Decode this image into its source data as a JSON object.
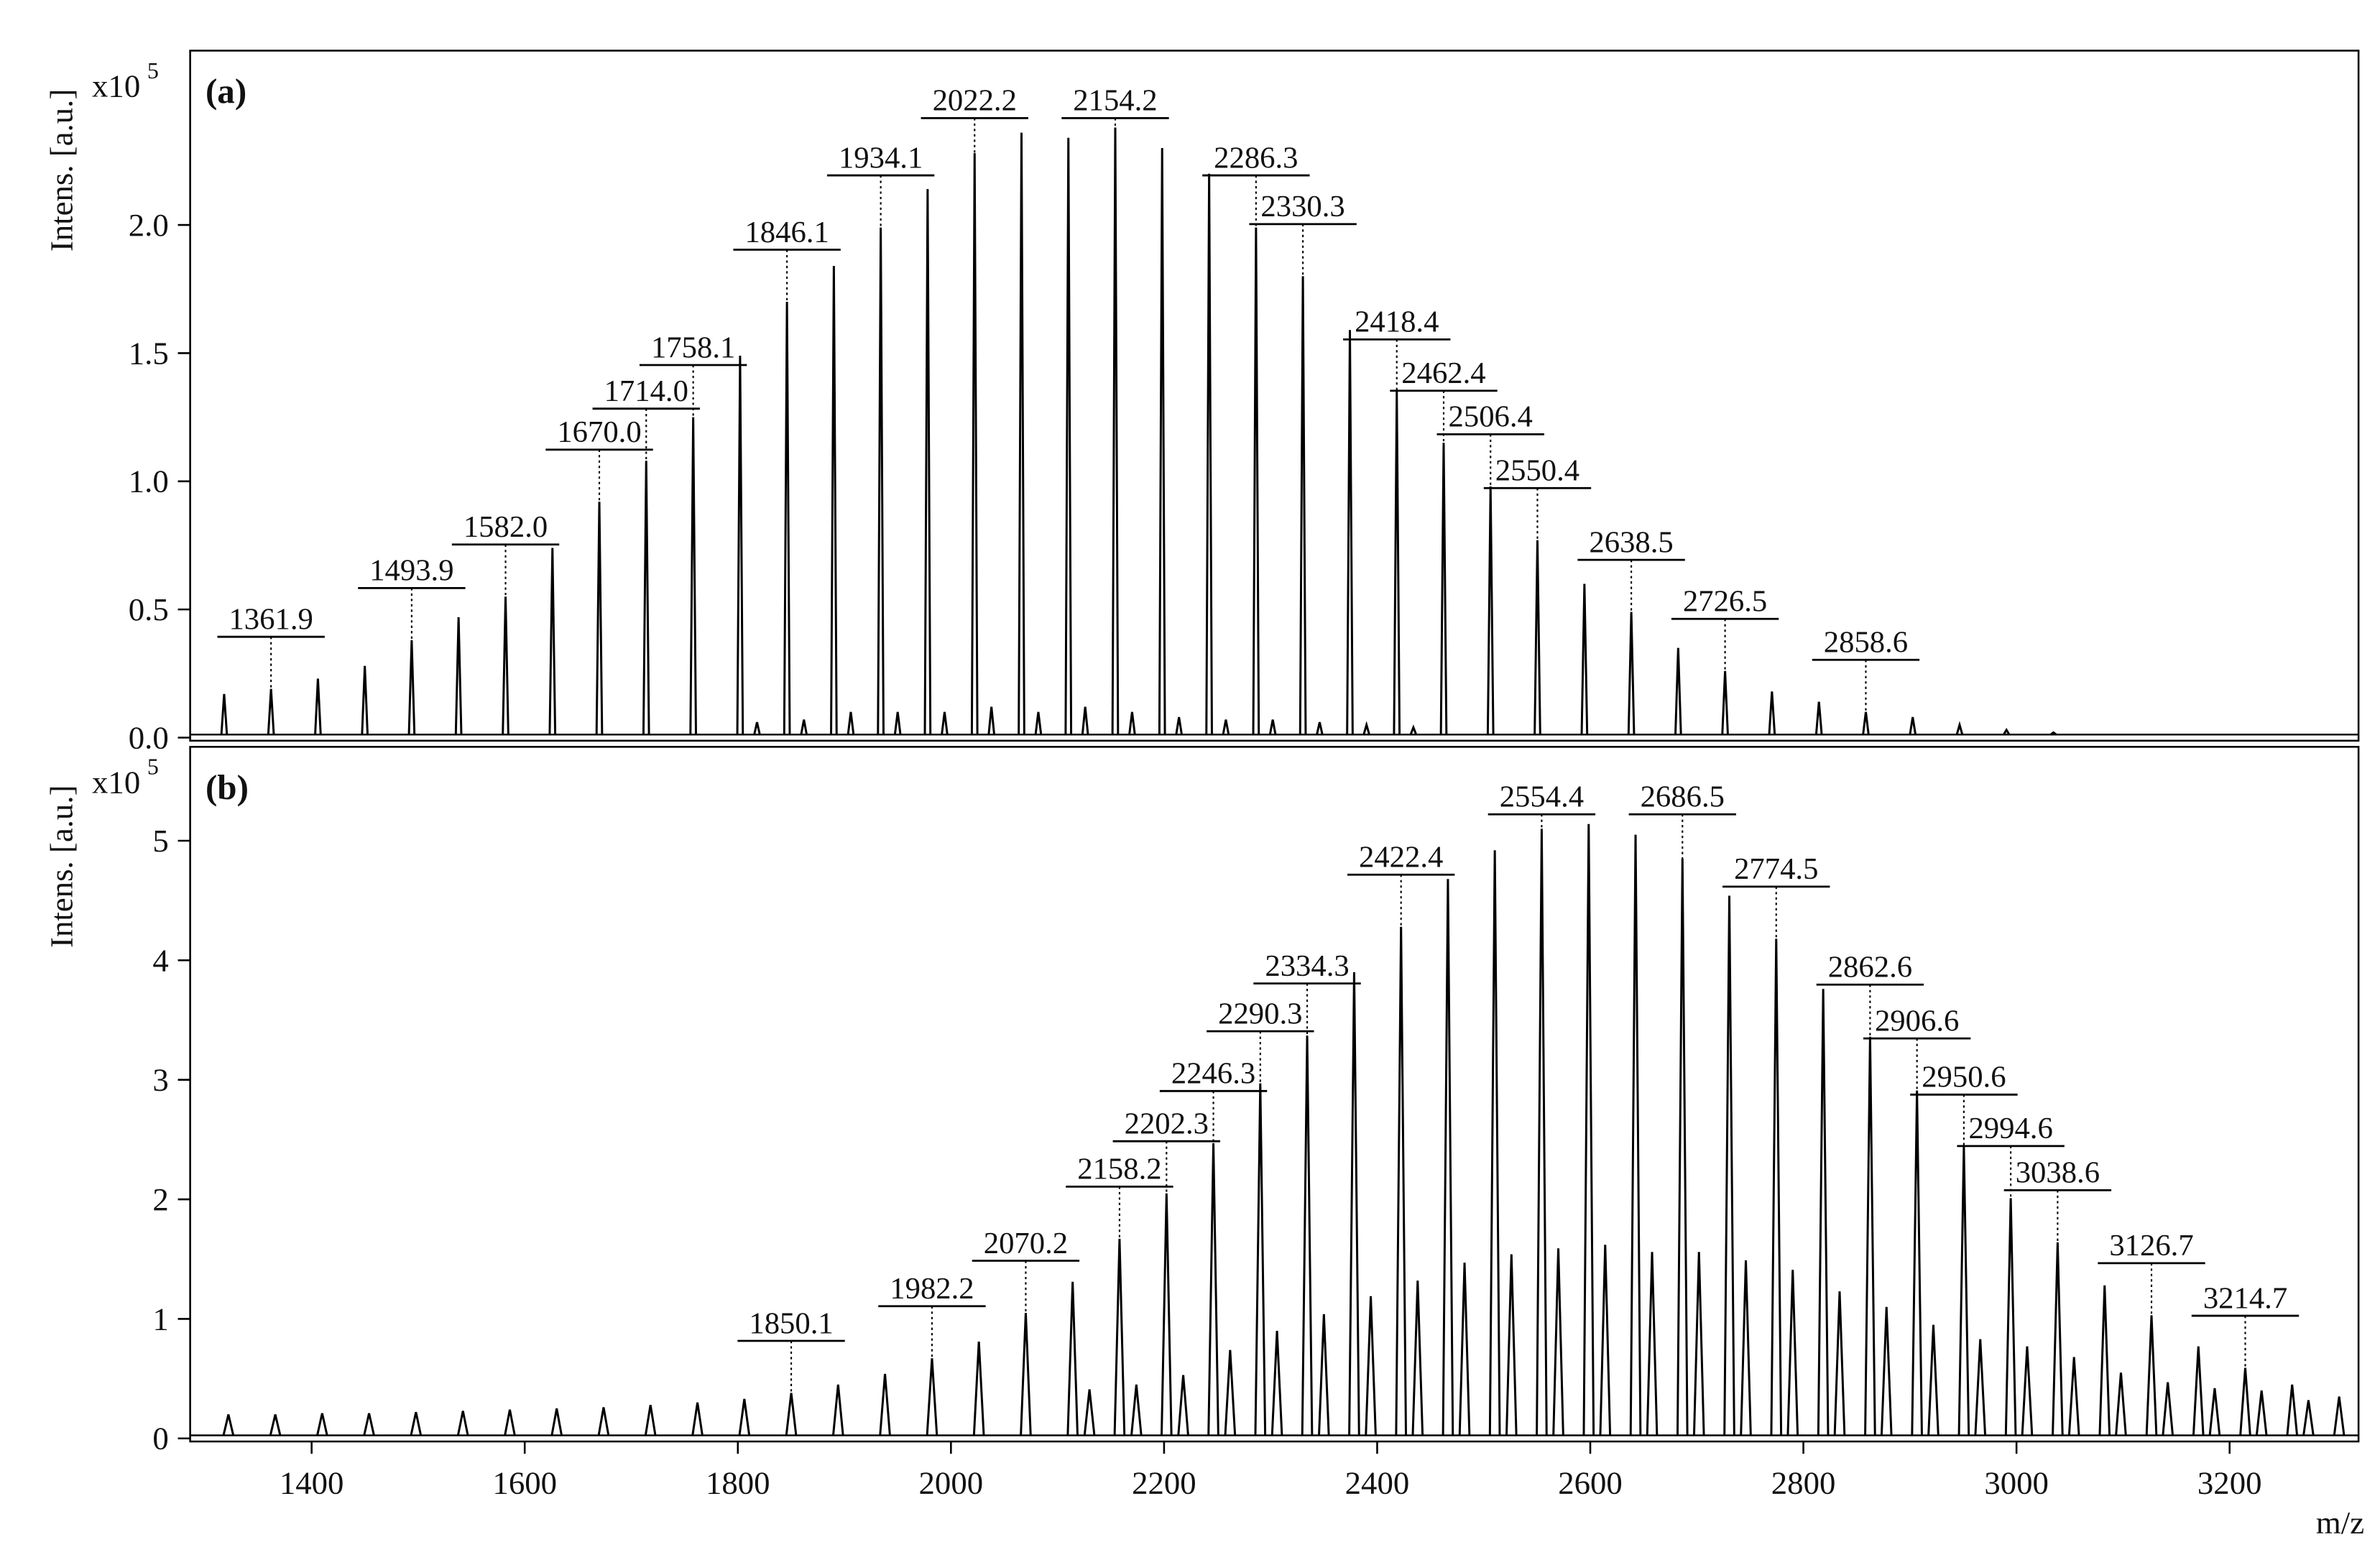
{
  "chart_data": [
    {
      "type": "spectrum",
      "panel_label": "(a)",
      "y_label": "Intens. [a.u.]",
      "y_multiplier": "x10",
      "y_exponent": "5",
      "color": "#000000",
      "xlim": [
        1286,
        3321
      ],
      "ylim": [
        0,
        2.68
      ],
      "yticks": [
        {
          "value": 0,
          "label": "0.0"
        },
        0.5,
        {
          "value": 1,
          "label": "1.0"
        },
        1.5,
        {
          "value": 2,
          "label": "2.0"
        }
      ],
      "x": [
        1317.9,
        1361.9,
        1405.9,
        1449.9,
        1493.9,
        1537.9,
        1582.0,
        1626.0,
        1670.0,
        1714.0,
        1758.1,
        1802.1,
        1846.1,
        1890.1,
        1934.1,
        1978.1,
        2022.2,
        2066.2,
        2110.2,
        2154.2,
        2198.2,
        2242.3,
        2286.3,
        2330.3,
        2374.4,
        2418.4,
        2462.4,
        2506.4,
        2550.4,
        2594.5,
        2638.5,
        2682.5,
        2726.5,
        2770.5,
        2814.6,
        2858.6,
        2902.6,
        2946.6,
        2990.6,
        3034.7,
        1818,
        1862,
        1906,
        1950,
        1994,
        2038,
        2082,
        2126,
        2170,
        2214,
        2258,
        2302,
        2346,
        2390,
        2434
      ],
      "values": [
        0.17,
        0.19,
        0.23,
        0.28,
        0.38,
        0.47,
        0.55,
        0.74,
        0.92,
        1.08,
        1.25,
        1.49,
        1.7,
        1.84,
        1.99,
        2.14,
        2.28,
        2.36,
        2.34,
        2.38,
        2.3,
        2.2,
        1.99,
        1.8,
        1.59,
        1.35,
        1.15,
        0.98,
        0.77,
        0.6,
        0.49,
        0.35,
        0.26,
        0.18,
        0.14,
        0.1,
        0.08,
        0.05,
        0.03,
        0.02,
        0.06,
        0.07,
        0.1,
        0.1,
        0.1,
        0.12,
        0.1,
        0.12,
        0.1,
        0.08,
        0.07,
        0.07,
        0.06,
        0.05,
        0.04
      ],
      "annotations": [
        {
          "value": 1361.9,
          "label": "1361.9"
        },
        {
          "value": 1493.9,
          "label": "1493.9"
        },
        {
          "value": 1582.0,
          "label": "1582.0"
        },
        {
          "value": 1670.0,
          "label": "1670.0"
        },
        {
          "value": 1714.0,
          "label": "1714.0"
        },
        {
          "value": 1758.1,
          "label": "1758.1"
        },
        {
          "value": 1846.1,
          "label": "1846.1"
        },
        {
          "value": 1934.1,
          "label": "1934.1"
        },
        {
          "value": 2022.2,
          "label": "2022.2"
        },
        {
          "value": 2154.2,
          "label": "2154.2"
        },
        {
          "value": 2286.3,
          "label": "2286.3"
        },
        {
          "value": 2330.3,
          "label": "2330.3"
        },
        {
          "value": 2418.4,
          "label": "2418.4"
        },
        {
          "value": 2462.4,
          "label": "2462.4"
        },
        {
          "value": 2506.4,
          "label": "2506.4"
        },
        {
          "value": 2550.4,
          "label": "2550.4"
        },
        {
          "value": 2638.5,
          "label": "2638.5"
        },
        {
          "value": 2726.5,
          "label": "2726.5"
        },
        {
          "value": 2858.6,
          "label": "2858.6"
        }
      ]
    },
    {
      "type": "spectrum",
      "panel_label": "(b)",
      "y_label": "Intens. [a.u.]",
      "y_multiplier": "x10",
      "y_exponent": "5",
      "color": "#000000",
      "x_label": "m/z",
      "xlim": [
        1286,
        3321
      ],
      "ylim": [
        0,
        5.76
      ],
      "xticks": [
        1400,
        1600,
        1800,
        2000,
        2200,
        2400,
        2600,
        2800,
        3000,
        3200
      ],
      "yticks": [
        0,
        1,
        2,
        3,
        4,
        5
      ],
      "x": [
        1321.9,
        1365.9,
        1409.9,
        1453.9,
        1497.9,
        1542.0,
        1586.0,
        1630.0,
        1674.0,
        1718.0,
        1762.1,
        1806.1,
        1850.1,
        1894.1,
        1938.1,
        1982.2,
        2026.2,
        2070.2,
        2114.2,
        2158.2,
        2202.3,
        2246.3,
        2290.3,
        2334.3,
        2378.4,
        2422.4,
        2466.4,
        2510.4,
        2554.4,
        2598.5,
        2642.5,
        2686.5,
        2730.5,
        2774.5,
        2818.6,
        2862.6,
        2906.6,
        2950.6,
        2994.6,
        3038.6,
        3082.7,
        3126.7,
        3170.7,
        3214.7,
        3258.7,
        3302.8,
        2130,
        2174,
        2218,
        2262,
        2306,
        2350,
        2394,
        2438,
        2482,
        2526,
        2570,
        2614,
        2658,
        2702,
        2746,
        2790,
        2834,
        2878,
        2922,
        2966,
        3010,
        3054,
        3098,
        3142,
        3186,
        3230,
        3274
      ],
      "values": [
        0.2,
        0.2,
        0.21,
        0.21,
        0.22,
        0.23,
        0.24,
        0.25,
        0.26,
        0.28,
        0.3,
        0.33,
        0.38,
        0.45,
        0.54,
        0.67,
        0.81,
        1.05,
        1.31,
        1.67,
        2.05,
        2.47,
        2.97,
        3.37,
        3.9,
        4.28,
        4.68,
        4.92,
        5.1,
        5.14,
        5.05,
        4.85,
        4.54,
        4.18,
        3.76,
        3.36,
        2.91,
        2.44,
        2.01,
        1.64,
        1.28,
        1.03,
        0.77,
        0.59,
        0.45,
        0.35,
        0.41,
        0.45,
        0.53,
        0.74,
        0.9,
        1.04,
        1.19,
        1.32,
        1.47,
        1.54,
        1.59,
        1.62,
        1.56,
        1.56,
        1.49,
        1.41,
        1.23,
        1.1,
        0.95,
        0.83,
        0.77,
        0.68,
        0.55,
        0.47,
        0.42,
        0.4,
        0.32
      ],
      "annotations": [
        {
          "value": 1850.1,
          "label": "1850.1"
        },
        {
          "value": 1982.2,
          "label": "1982.2"
        },
        {
          "value": 2070.2,
          "label": "2070.2"
        },
        {
          "value": 2158.2,
          "label": "2158.2"
        },
        {
          "value": 2202.3,
          "label": "2202.3"
        },
        {
          "value": 2246.3,
          "label": "2246.3"
        },
        {
          "value": 2290.3,
          "label": "2290.3"
        },
        {
          "value": 2334.3,
          "label": "2334.3"
        },
        {
          "value": 2422.4,
          "label": "2422.4"
        },
        {
          "value": 2554.4,
          "label": "2554.4"
        },
        {
          "value": 2686.5,
          "label": "2686.5"
        },
        {
          "value": 2774.5,
          "label": "2774.5"
        },
        {
          "value": 2862.6,
          "label": "2862.6"
        },
        {
          "value": 2906.6,
          "label": "2906.6"
        },
        {
          "value": 2950.6,
          "label": "2950.6"
        },
        {
          "value": 2994.6,
          "label": "2994.6"
        },
        {
          "value": 3038.6,
          "label": "3038.6"
        },
        {
          "value": 3126.7,
          "label": "3126.7"
        },
        {
          "value": 3214.7,
          "label": "3214.7"
        }
      ]
    }
  ]
}
